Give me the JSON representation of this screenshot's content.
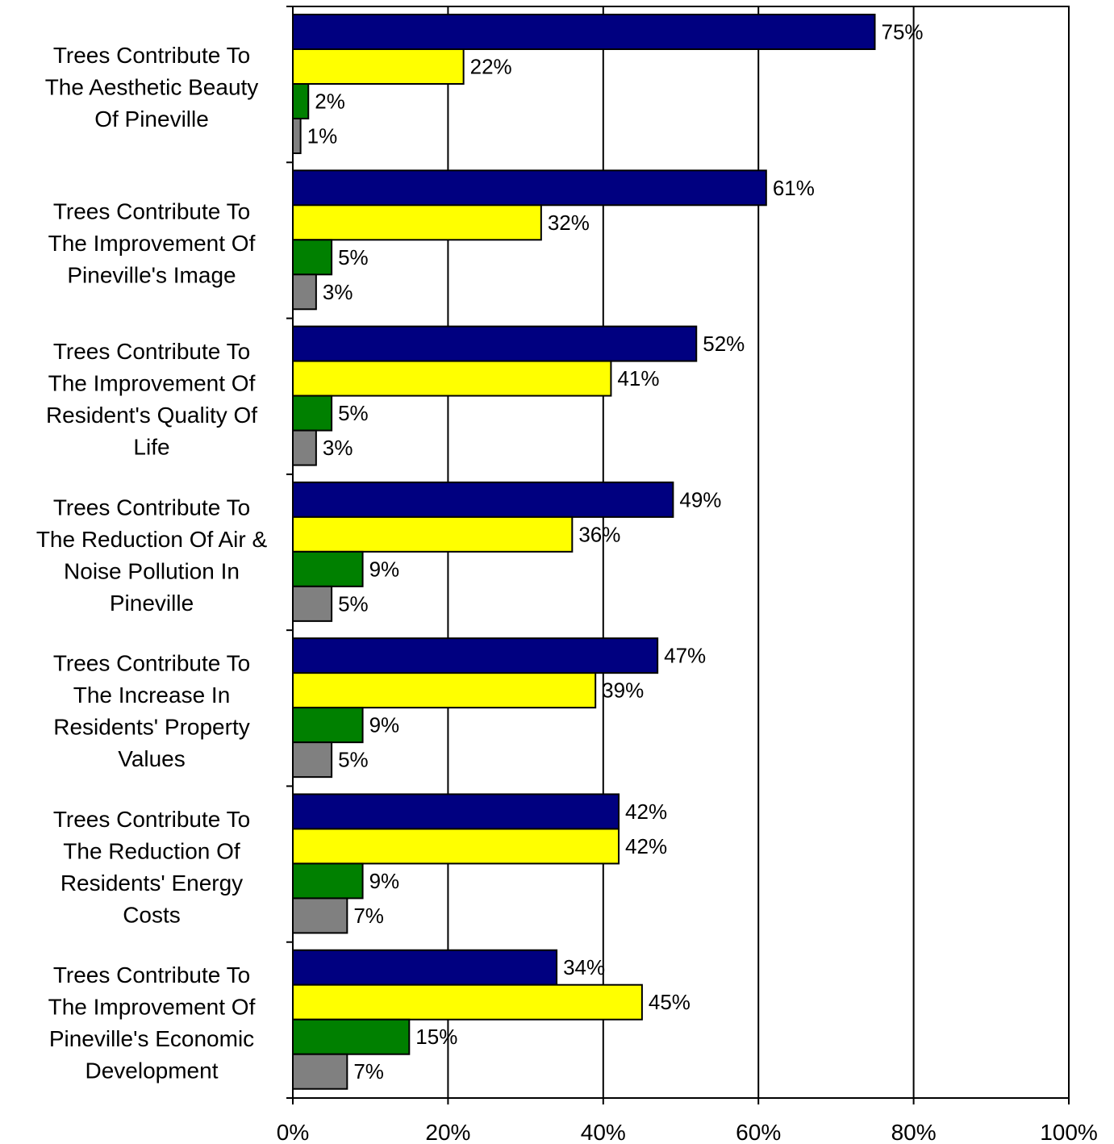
{
  "chart_data": {
    "type": "bar",
    "orientation": "horizontal",
    "title": "",
    "xlabel": "",
    "ylabel": "",
    "xlim": [
      0,
      100
    ],
    "x_ticks": [
      "0%",
      "20%",
      "40%",
      "60%",
      "80%",
      "100%"
    ],
    "grid": "vertical",
    "legend": "none",
    "categories": [
      [
        "Trees Contribute To",
        "The Aesthetic Beauty",
        "Of Pineville"
      ],
      [
        "Trees Contribute To",
        "The Improvement Of",
        "Pineville's Image"
      ],
      [
        "Trees Contribute To",
        "The Improvement Of",
        "Resident's Quality Of",
        "Life"
      ],
      [
        "Trees Contribute To",
        "The Reduction Of Air &",
        "Noise Pollution In",
        "Pineville"
      ],
      [
        "Trees Contribute To",
        "The Increase In",
        "Residents' Property",
        "Values"
      ],
      [
        "Trees Contribute To",
        "The Reduction Of",
        "Residents' Energy",
        "Costs"
      ],
      [
        "Trees Contribute To",
        "The Improvement Of",
        "Pineville's Economic",
        "Development"
      ]
    ],
    "series": [
      {
        "color": "#000080",
        "values": [
          75,
          61,
          52,
          49,
          47,
          42,
          34
        ],
        "labels": [
          "75%",
          "61%",
          "52%",
          "49%",
          "47%",
          "42%",
          "34%"
        ]
      },
      {
        "color": "#ffff00",
        "values": [
          22,
          32,
          41,
          36,
          39,
          42,
          45
        ],
        "labels": [
          "22%",
          "32%",
          "41%",
          "36%",
          "39%",
          "42%",
          "45%"
        ]
      },
      {
        "color": "#008000",
        "values": [
          2,
          5,
          5,
          9,
          9,
          9,
          15
        ],
        "labels": [
          "2%",
          "5%",
          "5%",
          "9%",
          "9%",
          "9%",
          "15%"
        ]
      },
      {
        "color": "#808080",
        "values": [
          1,
          3,
          3,
          5,
          5,
          7,
          7
        ],
        "labels": [
          "1%",
          "3%",
          "3%",
          "5%",
          "5%",
          "7%",
          "7%"
        ]
      }
    ]
  }
}
